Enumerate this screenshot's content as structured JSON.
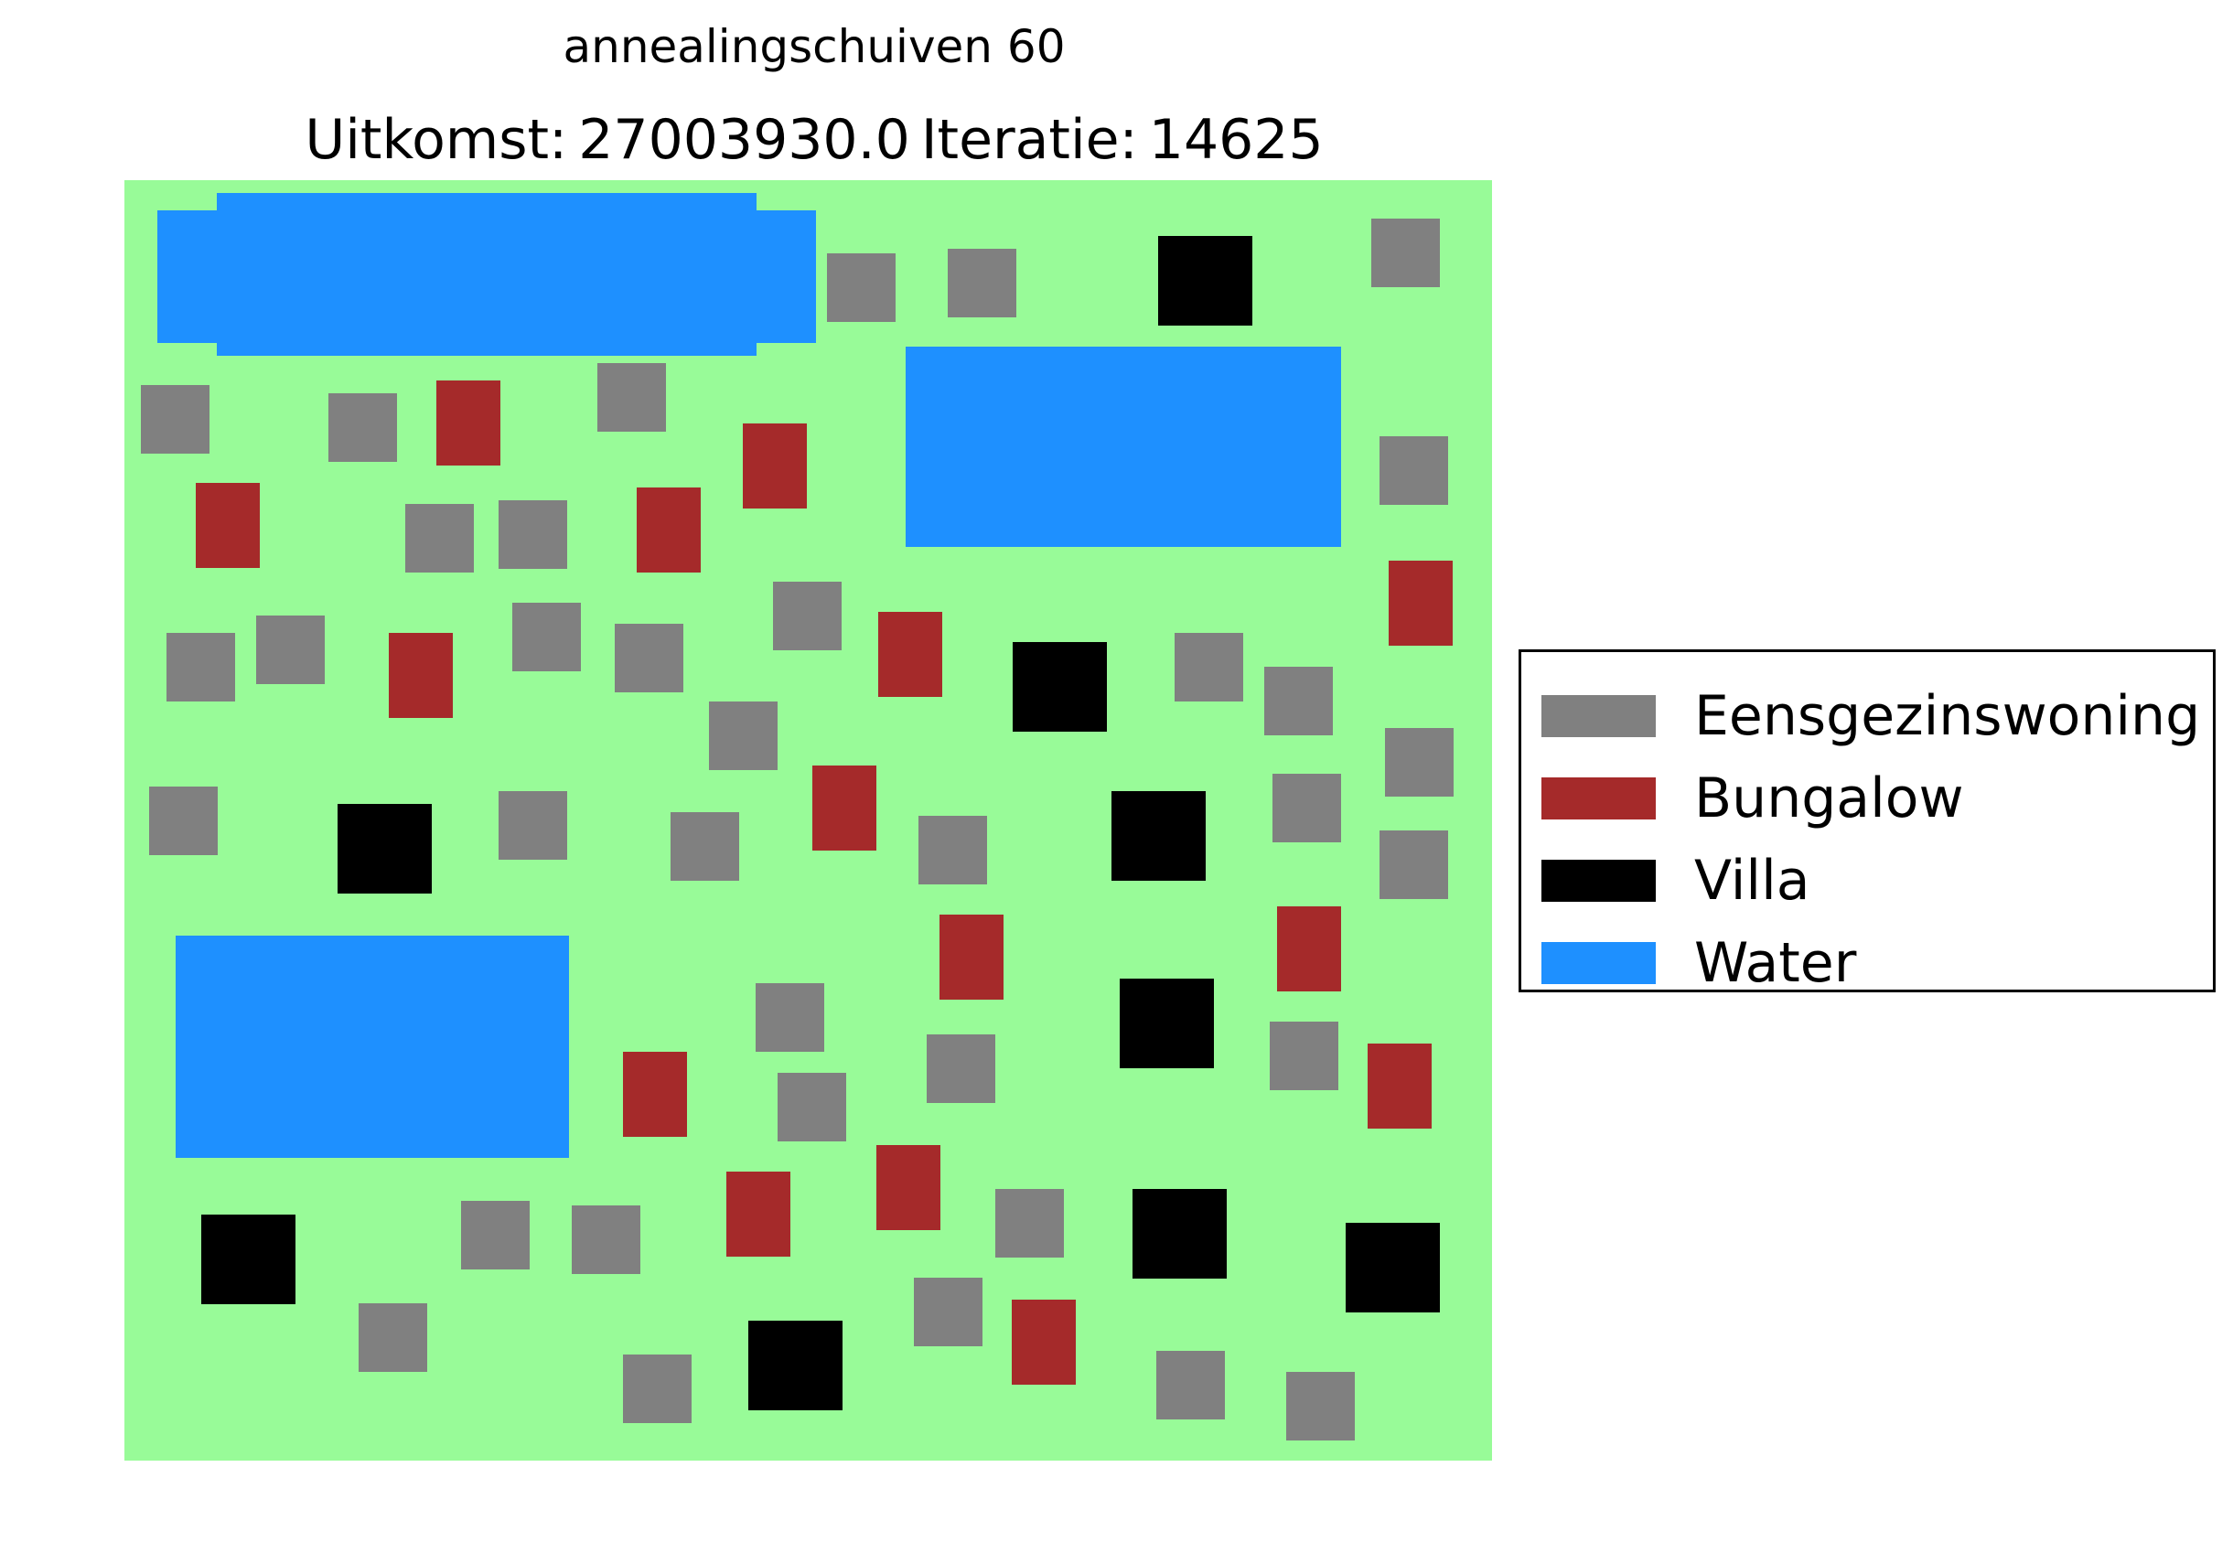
{
  "figure": {
    "suptitle": "annealingschuiven 60",
    "title_parts": [
      "Uitkomst:",
      "27003930.0",
      "Iteratie:",
      "14625"
    ]
  },
  "colors": {
    "grass": "#98fb98",
    "eengezinswoning": "#808080",
    "bungalow": "#a52a2a",
    "villa": "#000000",
    "water": "#1e90ff"
  },
  "legend": [
    {
      "label": "Eensgezinswoning",
      "color": "#808080"
    },
    {
      "label": "Bungalow",
      "color": "#a52a2a"
    },
    {
      "label": "Villa",
      "color": "#000000"
    },
    {
      "label": "Water",
      "color": "#1e90ff"
    }
  ]
}
